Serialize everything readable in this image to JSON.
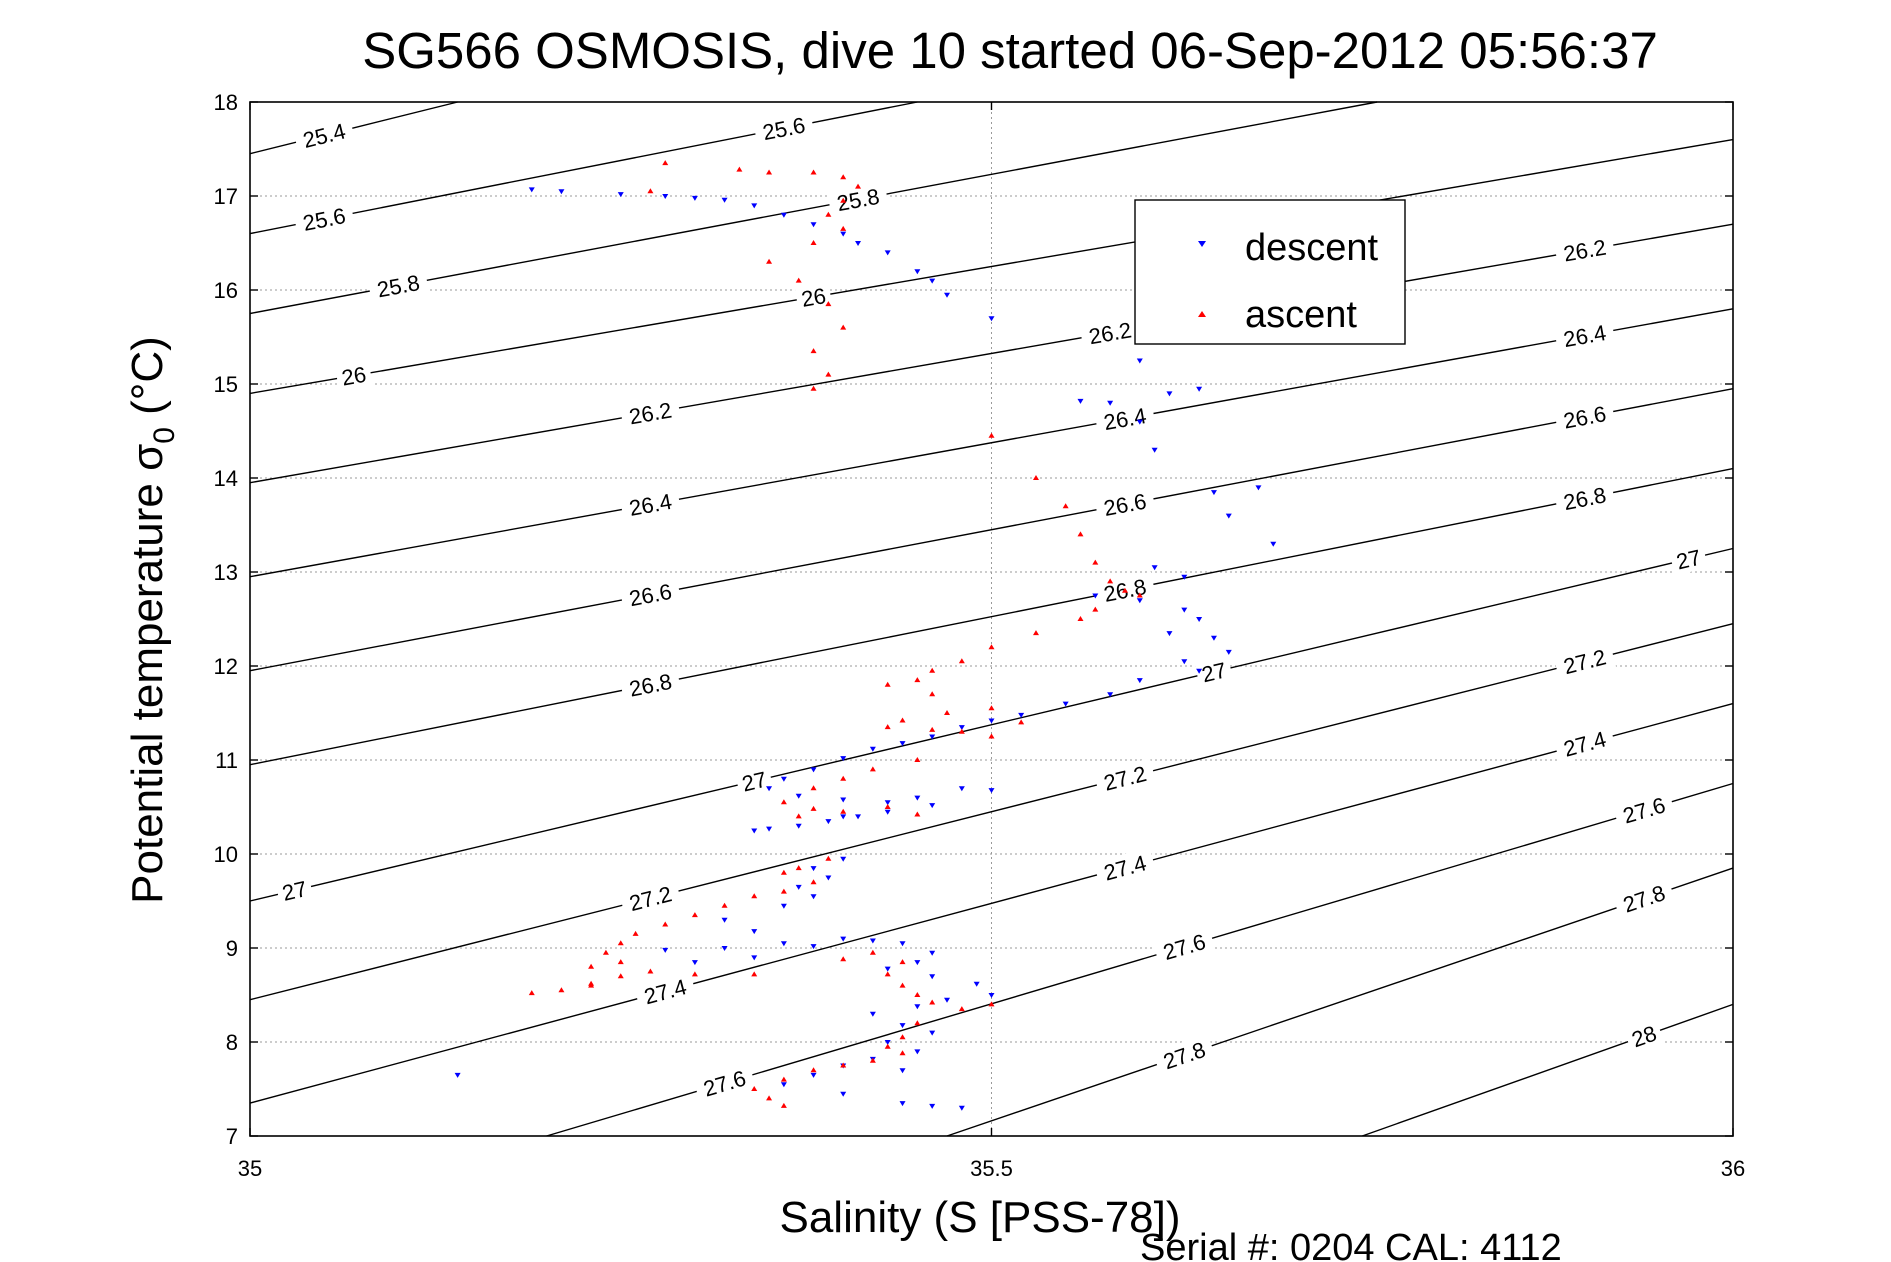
{
  "chart_data": {
    "type": "scatter",
    "title": "SG566 OSMOSIS, dive 10 started 06-Sep-2012 05:56:37",
    "xlabel": "Salinity (S [PSS-78])",
    "ylabel_main": "Potential temperature σ",
    "ylabel_sub": "0",
    "ylabel_unit": " (°C)",
    "footer": "Serial #: 0204  CAL: 4112",
    "xlim": [
      35,
      36
    ],
    "ylim": [
      7,
      18
    ],
    "xticks": [
      "35",
      "35.5",
      "36"
    ],
    "yticks": [
      "7",
      "8",
      "9",
      "10",
      "11",
      "12",
      "13",
      "14",
      "15",
      "16",
      "17",
      "18"
    ],
    "grid": true,
    "legend_position": "top-right",
    "legend": [
      "descent",
      "ascent"
    ],
    "colors": {
      "descent": "#0000ff",
      "ascent": "#ff0000",
      "contour": "#000000"
    },
    "density_contours": [
      {
        "label": "25.4",
        "S": [
          35.0,
          35.14
        ],
        "T": [
          17.45,
          18.0
        ],
        "label_at": [
          [
            35.05,
            17.6
          ]
        ]
      },
      {
        "label": "25.6",
        "S": [
          35.0,
          35.45
        ],
        "T": [
          16.6,
          18.0
        ],
        "label_at": [
          [
            35.36,
            17.8
          ],
          [
            35.05,
            16.75
          ]
        ]
      },
      {
        "label": "25.8",
        "S": [
          35.0,
          35.76
        ],
        "T": [
          15.75,
          18.0
        ],
        "label_at": [
          [
            35.41,
            17.1
          ],
          [
            35.1,
            15.85
          ]
        ]
      },
      {
        "label": "26",
        "S": [
          35.0,
          36.0
        ],
        "T": [
          14.9,
          17.6
        ],
        "label_at": [
          [
            35.38,
            16.2
          ],
          [
            35.07,
            15.1
          ],
          [
            35.71,
            17.2
          ]
        ]
      },
      {
        "label": "26.2",
        "S": [
          35.0,
          36.0
        ],
        "T": [
          13.95,
          16.7
        ],
        "label_at": [
          [
            35.27,
            14.9
          ],
          [
            35.58,
            15.95
          ],
          [
            35.9,
            16.95
          ]
        ]
      },
      {
        "label": "26.4",
        "S": [
          35.0,
          36.0
        ],
        "T": [
          12.95,
          15.8
        ],
        "label_at": [
          [
            35.27,
            13.95
          ],
          [
            35.59,
            14.8
          ],
          [
            35.9,
            16.1
          ]
        ]
      },
      {
        "label": "26.6",
        "S": [
          35.0,
          36.0
        ],
        "T": [
          11.95,
          14.95
        ],
        "label_at": [
          [
            35.27,
            12.95
          ],
          [
            35.59,
            13.95
          ],
          [
            35.9,
            15.3
          ]
        ]
      },
      {
        "label": "26.8",
        "S": [
          35.0,
          36.0
        ],
        "T": [
          10.95,
          14.1
        ],
        "label_at": [
          [
            35.27,
            11.95
          ],
          [
            35.59,
            13.0
          ],
          [
            35.9,
            14.4
          ]
        ]
      },
      {
        "label": "27",
        "S": [
          35.0,
          36.0
        ],
        "T": [
          9.5,
          13.25
        ],
        "label_at": [
          [
            35.34,
            11.2
          ],
          [
            35.65,
            12.5
          ],
          [
            35.97,
            13.5
          ],
          [
            35.03,
            9.75
          ]
        ]
      },
      {
        "label": "27.2",
        "S": [
          35.0,
          36.0
        ],
        "T": [
          8.45,
          12.45
        ],
        "label_at": [
          [
            35.27,
            9.85
          ],
          [
            35.59,
            11.1
          ],
          [
            35.9,
            12.4
          ]
        ]
      },
      {
        "label": "27.4",
        "S": [
          35.0,
          36.0
        ],
        "T": [
          7.35,
          11.6
        ],
        "label_at": [
          [
            35.28,
            8.55
          ],
          [
            35.59,
            10.0
          ],
          [
            35.9,
            11.4
          ]
        ]
      },
      {
        "label": "27.6",
        "S": [
          35.2,
          36.0
        ],
        "T": [
          7.0,
          10.75
        ],
        "label_at": [
          [
            35.32,
            7.55
          ],
          [
            35.63,
            9.05
          ],
          [
            35.94,
            10.35
          ]
        ]
      },
      {
        "label": "27.8",
        "S": [
          35.47,
          36.0
        ],
        "T": [
          7.0,
          9.85
        ],
        "label_at": [
          [
            35.63,
            7.75
          ],
          [
            35.94,
            9.3
          ]
        ]
      },
      {
        "label": "28",
        "S": [
          35.75,
          36.0
        ],
        "T": [
          7.0,
          8.4
        ],
        "label_at": [
          [
            35.94,
            8.05
          ]
        ]
      }
    ],
    "series": [
      {
        "name": "descent",
        "marker": "down-triangle",
        "S_T": [
          [
            35.19,
            17.07
          ],
          [
            35.21,
            17.05
          ],
          [
            35.25,
            17.02
          ],
          [
            35.28,
            17.0
          ],
          [
            35.3,
            16.98
          ],
          [
            35.32,
            16.96
          ],
          [
            35.34,
            16.9
          ],
          [
            35.36,
            16.8
          ],
          [
            35.38,
            16.7
          ],
          [
            35.4,
            16.6
          ],
          [
            35.41,
            16.5
          ],
          [
            35.43,
            16.4
          ],
          [
            35.45,
            16.2
          ],
          [
            35.46,
            16.1
          ],
          [
            35.47,
            15.95
          ],
          [
            35.5,
            15.7
          ],
          [
            35.56,
            14.82
          ],
          [
            35.58,
            14.8
          ],
          [
            35.6,
            15.25
          ],
          [
            35.62,
            14.9
          ],
          [
            35.64,
            14.95
          ],
          [
            35.6,
            14.6
          ],
          [
            35.61,
            14.3
          ],
          [
            35.65,
            13.85
          ],
          [
            35.68,
            13.9
          ],
          [
            35.66,
            13.6
          ],
          [
            35.69,
            13.3
          ],
          [
            35.61,
            13.05
          ],
          [
            35.63,
            12.95
          ],
          [
            35.57,
            12.75
          ],
          [
            35.6,
            12.7
          ],
          [
            35.63,
            12.6
          ],
          [
            35.64,
            12.5
          ],
          [
            35.62,
            12.35
          ],
          [
            35.65,
            12.3
          ],
          [
            35.66,
            12.15
          ],
          [
            35.63,
            12.05
          ],
          [
            35.64,
            11.95
          ],
          [
            35.6,
            11.85
          ],
          [
            35.58,
            11.7
          ],
          [
            35.55,
            11.6
          ],
          [
            35.52,
            11.48
          ],
          [
            35.5,
            11.42
          ],
          [
            35.48,
            11.35
          ],
          [
            35.46,
            11.25
          ],
          [
            35.44,
            11.18
          ],
          [
            35.42,
            11.12
          ],
          [
            35.4,
            11.02
          ],
          [
            35.38,
            10.9
          ],
          [
            35.36,
            10.8
          ],
          [
            35.35,
            10.7
          ],
          [
            35.37,
            10.62
          ],
          [
            35.4,
            10.58
          ],
          [
            35.43,
            10.55
          ],
          [
            35.45,
            10.6
          ],
          [
            35.48,
            10.7
          ],
          [
            35.5,
            10.68
          ],
          [
            35.46,
            10.52
          ],
          [
            35.43,
            10.45
          ],
          [
            35.4,
            10.4
          ],
          [
            35.37,
            10.3
          ],
          [
            35.34,
            10.25
          ],
          [
            35.41,
            10.4
          ],
          [
            35.39,
            10.35
          ],
          [
            35.4,
            9.95
          ],
          [
            35.38,
            9.85
          ],
          [
            35.39,
            9.75
          ],
          [
            35.37,
            9.65
          ],
          [
            35.38,
            9.55
          ],
          [
            35.36,
            9.45
          ],
          [
            35.32,
            9.3
          ],
          [
            35.34,
            9.18
          ],
          [
            35.36,
            9.05
          ],
          [
            35.32,
            9.0
          ],
          [
            35.28,
            8.98
          ],
          [
            35.3,
            8.85
          ],
          [
            35.34,
            8.9
          ],
          [
            35.38,
            9.02
          ],
          [
            35.4,
            9.1
          ],
          [
            35.42,
            9.08
          ],
          [
            35.44,
            9.05
          ],
          [
            35.46,
            8.95
          ],
          [
            35.45,
            8.85
          ],
          [
            35.43,
            8.78
          ],
          [
            35.46,
            8.7
          ],
          [
            35.49,
            8.62
          ],
          [
            35.5,
            8.5
          ],
          [
            35.47,
            8.45
          ],
          [
            35.45,
            8.38
          ],
          [
            35.42,
            8.3
          ],
          [
            35.44,
            8.18
          ],
          [
            35.46,
            8.1
          ],
          [
            35.43,
            8.0
          ],
          [
            35.45,
            7.9
          ],
          [
            35.42,
            7.82
          ],
          [
            35.4,
            7.75
          ],
          [
            35.44,
            7.7
          ],
          [
            35.38,
            7.65
          ],
          [
            35.36,
            7.55
          ],
          [
            35.4,
            7.45
          ],
          [
            35.44,
            7.35
          ],
          [
            35.46,
            7.32
          ],
          [
            35.48,
            7.3
          ],
          [
            35.14,
            7.65
          ],
          [
            35.35,
            10.27
          ]
        ]
      },
      {
        "name": "ascent",
        "marker": "up-triangle",
        "S_T": [
          [
            35.27,
            17.05
          ],
          [
            35.28,
            17.35
          ],
          [
            35.33,
            17.28
          ],
          [
            35.35,
            17.25
          ],
          [
            35.38,
            17.25
          ],
          [
            35.4,
            17.2
          ],
          [
            35.41,
            17.1
          ],
          [
            35.4,
            16.95
          ],
          [
            35.39,
            16.8
          ],
          [
            35.4,
            16.65
          ],
          [
            35.38,
            16.5
          ],
          [
            35.35,
            16.3
          ],
          [
            35.37,
            16.1
          ],
          [
            35.39,
            15.85
          ],
          [
            35.4,
            15.6
          ],
          [
            35.38,
            15.35
          ],
          [
            35.39,
            15.1
          ],
          [
            35.38,
            14.95
          ],
          [
            35.5,
            14.45
          ],
          [
            35.53,
            14.0
          ],
          [
            35.55,
            13.7
          ],
          [
            35.56,
            13.4
          ],
          [
            35.57,
            13.1
          ],
          [
            35.58,
            12.9
          ],
          [
            35.59,
            12.8
          ],
          [
            35.6,
            12.75
          ],
          [
            35.57,
            12.6
          ],
          [
            35.56,
            12.5
          ],
          [
            35.53,
            12.35
          ],
          [
            35.5,
            12.2
          ],
          [
            35.48,
            12.05
          ],
          [
            35.46,
            11.95
          ],
          [
            35.45,
            11.85
          ],
          [
            35.43,
            11.8
          ],
          [
            35.46,
            11.7
          ],
          [
            35.5,
            11.55
          ],
          [
            35.47,
            11.5
          ],
          [
            35.44,
            11.42
          ],
          [
            35.43,
            11.35
          ],
          [
            35.46,
            11.32
          ],
          [
            35.48,
            11.3
          ],
          [
            35.5,
            11.25
          ],
          [
            35.52,
            11.4
          ],
          [
            35.45,
            11.0
          ],
          [
            35.42,
            10.9
          ],
          [
            35.4,
            10.8
          ],
          [
            35.38,
            10.7
          ],
          [
            35.36,
            10.55
          ],
          [
            35.38,
            10.48
          ],
          [
            35.37,
            10.4
          ],
          [
            35.4,
            10.45
          ],
          [
            35.43,
            10.5
          ],
          [
            35.45,
            10.42
          ],
          [
            35.39,
            9.95
          ],
          [
            35.37,
            9.85
          ],
          [
            35.36,
            9.8
          ],
          [
            35.38,
            9.7
          ],
          [
            35.36,
            9.6
          ],
          [
            35.34,
            9.55
          ],
          [
            35.32,
            9.45
          ],
          [
            35.3,
            9.35
          ],
          [
            35.28,
            9.25
          ],
          [
            35.26,
            9.15
          ],
          [
            35.25,
            9.05
          ],
          [
            35.24,
            8.95
          ],
          [
            35.23,
            8.8
          ],
          [
            35.25,
            8.85
          ],
          [
            35.27,
            8.75
          ],
          [
            35.25,
            8.7
          ],
          [
            35.23,
            8.62
          ],
          [
            35.21,
            8.55
          ],
          [
            35.19,
            8.52
          ],
          [
            35.23,
            8.6
          ],
          [
            35.3,
            8.72
          ],
          [
            35.34,
            8.72
          ],
          [
            35.4,
            8.88
          ],
          [
            35.42,
            8.95
          ],
          [
            35.44,
            8.85
          ],
          [
            35.43,
            8.72
          ],
          [
            35.44,
            8.6
          ],
          [
            35.45,
            8.5
          ],
          [
            35.46,
            8.42
          ],
          [
            35.48,
            8.35
          ],
          [
            35.5,
            8.4
          ],
          [
            35.45,
            8.2
          ],
          [
            35.44,
            8.05
          ],
          [
            35.43,
            7.95
          ],
          [
            35.44,
            7.88
          ],
          [
            35.42,
            7.8
          ],
          [
            35.4,
            7.75
          ],
          [
            35.38,
            7.7
          ],
          [
            35.36,
            7.6
          ],
          [
            35.34,
            7.5
          ],
          [
            35.35,
            7.4
          ],
          [
            35.36,
            7.32
          ]
        ]
      }
    ]
  }
}
